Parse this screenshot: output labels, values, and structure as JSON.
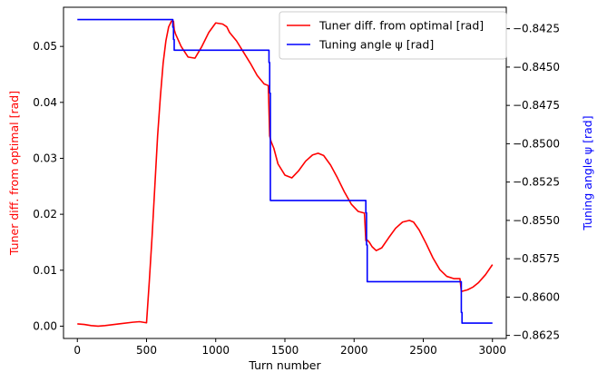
{
  "chart_data": {
    "type": "line",
    "xlabel": "Turn number",
    "ylabel_left": "Tuner diff. from optimal [rad]",
    "ylabel_right": "Tuning angle ψ [rad]",
    "xlim": [
      -100,
      3100
    ],
    "ylim_left": [
      -0.0022,
      0.057
    ],
    "ylim_right": [
      -0.8627,
      -0.8411
    ],
    "x_ticks": [
      0,
      500,
      1000,
      1500,
      2000,
      2500,
      3000
    ],
    "y_left_ticks": [
      0.0,
      0.01,
      0.02,
      0.03,
      0.04,
      0.05
    ],
    "y_left_tick_labels": [
      "0.00",
      "0.01",
      "0.02",
      "0.03",
      "0.04",
      "0.05"
    ],
    "y_right_ticks": [
      -0.8625,
      -0.86,
      -0.8575,
      -0.855,
      -0.8525,
      -0.85,
      -0.8475,
      -0.845,
      -0.8425
    ],
    "y_right_tick_labels": [
      "−0.8625",
      "−0.8600",
      "−0.8575",
      "−0.8550",
      "−0.8525",
      "−0.8500",
      "−0.8475",
      "−0.8450",
      "−0.8425"
    ],
    "grid": false,
    "legend_position": "top-right",
    "series": [
      {
        "name": "Tuner diff. from optimal [rad]",
        "axis": "left",
        "color": "#ff0000",
        "x": [
          0,
          50,
          100,
          150,
          200,
          300,
          400,
          450,
          500,
          520,
          540,
          560,
          580,
          600,
          620,
          640,
          660,
          680,
          695,
          700,
          710,
          750,
          800,
          850,
          900,
          950,
          1000,
          1050,
          1080,
          1100,
          1150,
          1200,
          1250,
          1300,
          1350,
          1380,
          1390,
          1400,
          1420,
          1450,
          1500,
          1550,
          1600,
          1650,
          1700,
          1740,
          1780,
          1830,
          1880,
          1930,
          1980,
          2030,
          2075,
          2085,
          2090,
          2110,
          2130,
          2160,
          2200,
          2250,
          2300,
          2350,
          2400,
          2430,
          2470,
          2520,
          2570,
          2620,
          2670,
          2720,
          2765,
          2775,
          2790,
          2820,
          2860,
          2900,
          2950,
          3000
        ],
        "y": [
          0.0004,
          0.0003,
          0.0001,
          0.0,
          0.0001,
          0.0004,
          0.0007,
          0.0008,
          0.0006,
          0.008,
          0.016,
          0.025,
          0.034,
          0.041,
          0.047,
          0.051,
          0.0535,
          0.0545,
          0.0545,
          0.053,
          0.0522,
          0.05,
          0.0481,
          0.0479,
          0.05,
          0.0525,
          0.0542,
          0.054,
          0.0535,
          0.0525,
          0.051,
          0.049,
          0.047,
          0.0448,
          0.0433,
          0.043,
          0.034,
          0.033,
          0.0318,
          0.029,
          0.027,
          0.0265,
          0.0278,
          0.0295,
          0.0306,
          0.0309,
          0.0305,
          0.0288,
          0.0265,
          0.024,
          0.0218,
          0.0205,
          0.0202,
          0.0153,
          0.0155,
          0.015,
          0.0142,
          0.0135,
          0.014,
          0.0158,
          0.0175,
          0.0186,
          0.0189,
          0.0186,
          0.0172,
          0.0148,
          0.0122,
          0.0101,
          0.0089,
          0.0085,
          0.0085,
          0.0062,
          0.0063,
          0.0065,
          0.007,
          0.0078,
          0.0092,
          0.011
        ]
      },
      {
        "name": "Tuning angle ψ [rad]",
        "axis": "right",
        "color": "#0000ff",
        "x": [
          0,
          690,
          690,
          695,
          695,
          700,
          700,
          1385,
          1385,
          1390,
          1390,
          1395,
          1395,
          2085,
          2085,
          2090,
          2090,
          2095,
          2095,
          2775,
          2775,
          2780,
          2780,
          3000
        ],
        "y": [
          -0.8419,
          -0.8419,
          -0.8424,
          -0.8424,
          -0.8432,
          -0.8432,
          -0.8439,
          -0.8439,
          -0.8447,
          -0.8447,
          -0.8467,
          -0.8467,
          -0.8537,
          -0.8537,
          -0.8545,
          -0.8545,
          -0.8566,
          -0.8566,
          -0.859,
          -0.859,
          -0.861,
          -0.861,
          -0.8617,
          -0.8617
        ]
      }
    ]
  }
}
